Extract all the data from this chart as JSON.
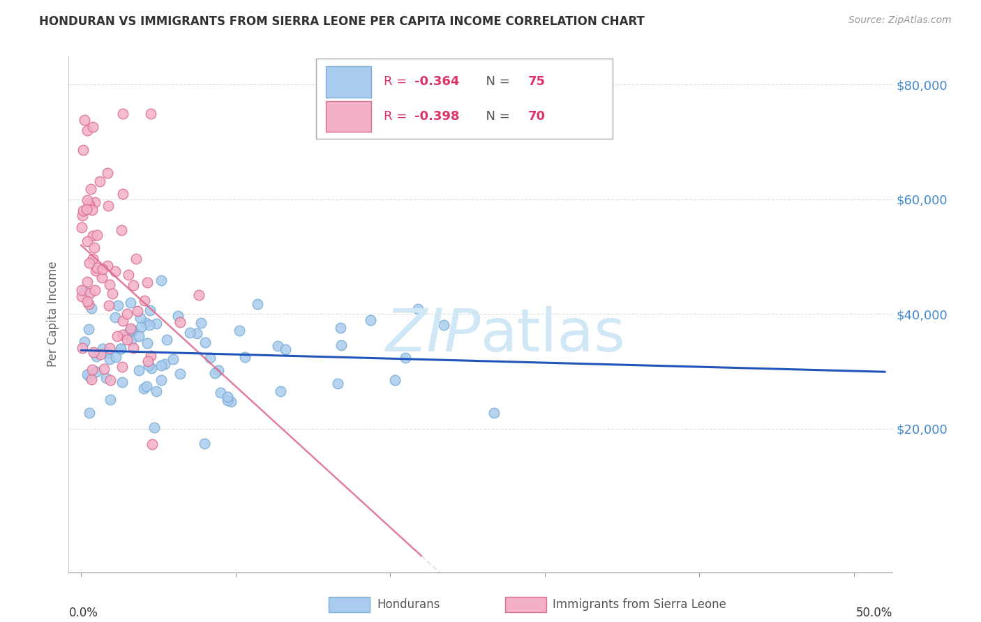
{
  "title": "HONDURAN VS IMMIGRANTS FROM SIERRA LEONE PER CAPITA INCOME CORRELATION CHART",
  "source": "Source: ZipAtlas.com",
  "ylabel": "Per Capita Income",
  "ytick_labels": [
    "$20,000",
    "$40,000",
    "$60,000",
    "$80,000"
  ],
  "ytick_values": [
    20000,
    40000,
    60000,
    80000
  ],
  "ylim": [
    -5000,
    85000
  ],
  "xlim": [
    -0.008,
    0.525
  ],
  "color_hondurans_fill": "#aaccee",
  "color_hondurans_edge": "#7aadd4",
  "color_sl_fill": "#f4b0c8",
  "color_sl_edge": "#d97090",
  "trendline_blue": "#2255bb",
  "trendline_pink": "#dd6688",
  "watermark_color": "#d0e8f5",
  "title_color": "#333333",
  "source_color": "#999999",
  "ytick_color": "#4488cc",
  "ylabel_color": "#666666",
  "grid_color": "#dddddd",
  "legend_edge": "#aaaaaa",
  "r_value_color": "#dd3366",
  "n_value_color": "#dd3366",
  "legend_text_color": "#555555"
}
